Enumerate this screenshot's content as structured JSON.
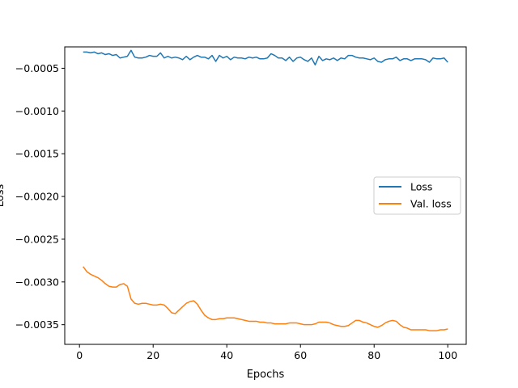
{
  "colors": {
    "loss": "#1f77b4",
    "val_loss": "#ff7f0e",
    "axes": "#000000",
    "legend_border": "#cccccc"
  },
  "chart_data": {
    "type": "line",
    "title": "",
    "xlabel": "Epochs",
    "ylabel": "Loss",
    "xlim": [
      -4,
      105
    ],
    "ylim": [
      -0.00373,
      -0.00025
    ],
    "xticks": [
      0,
      20,
      40,
      60,
      80,
      100
    ],
    "xtick_labels": [
      "0",
      "20",
      "40",
      "60",
      "80",
      "100"
    ],
    "yticks": [
      -0.0005,
      -0.001,
      -0.0015,
      -0.002,
      -0.0025,
      -0.003,
      -0.0035
    ],
    "ytick_labels": [
      "−0.0005",
      "−0.0010",
      "−0.0015",
      "−0.0020",
      "−0.0025",
      "−0.0030",
      "−0.0035"
    ],
    "grid": false,
    "legend": {
      "placement": "center-right"
    },
    "series": [
      {
        "name": "Loss",
        "color": "#1f77b4",
        "x": [
          1,
          2,
          3,
          4,
          5,
          6,
          7,
          8,
          9,
          10,
          11,
          12,
          13,
          14,
          15,
          16,
          17,
          18,
          19,
          20,
          21,
          22,
          23,
          24,
          25,
          26,
          27,
          28,
          29,
          30,
          31,
          32,
          33,
          34,
          35,
          36,
          37,
          38,
          39,
          40,
          41,
          42,
          43,
          44,
          45,
          46,
          47,
          48,
          49,
          50,
          51,
          52,
          53,
          54,
          55,
          56,
          57,
          58,
          59,
          60,
          61,
          62,
          63,
          64,
          65,
          66,
          67,
          68,
          69,
          70,
          71,
          72,
          73,
          74,
          75,
          76,
          77,
          78,
          79,
          80,
          81,
          82,
          83,
          84,
          85,
          86,
          87,
          88,
          89,
          90,
          91,
          92,
          93,
          94,
          95,
          96,
          97,
          98,
          99,
          100
        ],
        "values": [
          -0.00031,
          -0.00031,
          -0.00032,
          -0.00031,
          -0.00033,
          -0.00032,
          -0.00034,
          -0.00033,
          -0.00035,
          -0.00034,
          -0.00038,
          -0.00037,
          -0.00036,
          -0.00029,
          -0.00037,
          -0.00038,
          -0.00038,
          -0.00037,
          -0.00035,
          -0.00036,
          -0.00036,
          -0.00032,
          -0.00038,
          -0.00036,
          -0.00038,
          -0.00037,
          -0.00038,
          -0.0004,
          -0.00036,
          -0.0004,
          -0.00037,
          -0.00035,
          -0.00037,
          -0.00037,
          -0.00039,
          -0.00035,
          -0.00042,
          -0.00035,
          -0.00038,
          -0.00036,
          -0.0004,
          -0.00037,
          -0.00038,
          -0.00038,
          -0.00039,
          -0.00037,
          -0.00038,
          -0.00037,
          -0.00039,
          -0.00039,
          -0.00038,
          -0.00033,
          -0.00035,
          -0.00038,
          -0.00038,
          -0.00041,
          -0.00037,
          -0.00042,
          -0.00038,
          -0.00037,
          -0.0004,
          -0.00042,
          -0.00038,
          -0.00046,
          -0.00036,
          -0.00041,
          -0.00039,
          -0.0004,
          -0.00038,
          -0.00041,
          -0.00038,
          -0.00039,
          -0.00035,
          -0.00035,
          -0.00037,
          -0.00038,
          -0.00038,
          -0.00039,
          -0.0004,
          -0.00038,
          -0.00042,
          -0.00043,
          -0.0004,
          -0.00039,
          -0.00039,
          -0.00037,
          -0.00041,
          -0.00039,
          -0.00039,
          -0.00041,
          -0.00039,
          -0.00039,
          -0.00039,
          -0.0004,
          -0.00043,
          -0.00038,
          -0.00039,
          -0.00039,
          -0.00038,
          -0.00043
        ]
      },
      {
        "name": "Val. loss",
        "color": "#ff7f0e",
        "x": [
          1,
          2,
          3,
          4,
          5,
          6,
          7,
          8,
          9,
          10,
          11,
          12,
          13,
          14,
          15,
          16,
          17,
          18,
          19,
          20,
          21,
          22,
          23,
          24,
          25,
          26,
          27,
          28,
          29,
          30,
          31,
          32,
          33,
          34,
          35,
          36,
          37,
          38,
          39,
          40,
          41,
          42,
          43,
          44,
          45,
          46,
          47,
          48,
          49,
          50,
          51,
          52,
          53,
          54,
          55,
          56,
          57,
          58,
          59,
          60,
          61,
          62,
          63,
          64,
          65,
          66,
          67,
          68,
          69,
          70,
          71,
          72,
          73,
          74,
          75,
          76,
          77,
          78,
          79,
          80,
          81,
          82,
          83,
          84,
          85,
          86,
          87,
          88,
          89,
          90,
          91,
          92,
          93,
          94,
          95,
          96,
          97,
          98,
          99,
          100
        ],
        "values": [
          -0.00282,
          -0.00288,
          -0.00291,
          -0.00293,
          -0.00295,
          -0.00298,
          -0.00302,
          -0.00305,
          -0.00306,
          -0.00306,
          -0.00303,
          -0.00302,
          -0.00305,
          -0.0032,
          -0.00325,
          -0.00326,
          -0.00325,
          -0.00325,
          -0.00326,
          -0.00327,
          -0.00327,
          -0.00326,
          -0.00327,
          -0.00331,
          -0.00336,
          -0.00337,
          -0.00333,
          -0.00329,
          -0.00325,
          -0.00323,
          -0.00322,
          -0.00326,
          -0.00333,
          -0.00339,
          -0.00342,
          -0.00344,
          -0.00344,
          -0.00343,
          -0.00343,
          -0.00342,
          -0.00342,
          -0.00342,
          -0.00343,
          -0.00344,
          -0.00345,
          -0.00346,
          -0.00346,
          -0.00346,
          -0.00347,
          -0.00347,
          -0.00348,
          -0.00348,
          -0.00349,
          -0.00349,
          -0.00349,
          -0.00349,
          -0.00348,
          -0.00348,
          -0.00348,
          -0.00349,
          -0.0035,
          -0.0035,
          -0.0035,
          -0.00349,
          -0.00347,
          -0.00347,
          -0.00347,
          -0.00348,
          -0.0035,
          -0.00351,
          -0.00352,
          -0.00352,
          -0.00351,
          -0.00348,
          -0.00345,
          -0.00345,
          -0.00347,
          -0.00348,
          -0.0035,
          -0.00352,
          -0.00353,
          -0.00351,
          -0.00348,
          -0.00346,
          -0.00345,
          -0.00346,
          -0.0035,
          -0.00353,
          -0.00354,
          -0.00356,
          -0.00356,
          -0.00356,
          -0.00356,
          -0.00356,
          -0.00357,
          -0.00357,
          -0.00357,
          -0.00356,
          -0.00356,
          -0.00355
        ]
      }
    ]
  }
}
